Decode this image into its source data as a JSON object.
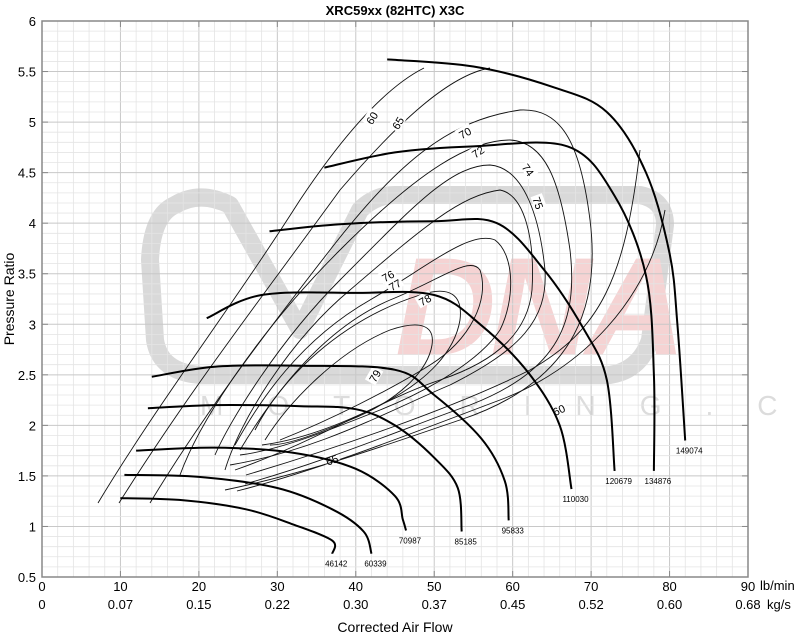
{
  "chart_data": {
    "type": "line",
    "title": "XRC59xx (82HTC) X3C",
    "xlabel": "Corrected Air Flow",
    "ylabel": "Pressure Ratio",
    "x_unit_primary": "lb/min",
    "x_unit_secondary": "kg/s",
    "xlim": [
      0,
      90
    ],
    "ylim": [
      0.5,
      6
    ],
    "x_ticks": [
      0,
      10,
      20,
      30,
      40,
      50,
      60,
      70,
      80,
      90
    ],
    "x_tick_labels": [
      "0",
      "10",
      "20",
      "30",
      "40",
      "50",
      "60",
      "70",
      "80",
      "90"
    ],
    "x_secondary_tick_labels": [
      "0",
      "0.07",
      "0.15",
      "0.22",
      "0.30",
      "0.37",
      "0.45",
      "0.52",
      "0.60",
      "0.68"
    ],
    "y_ticks": [
      0.5,
      1,
      1.5,
      2,
      2.5,
      3,
      3.5,
      4,
      4.5,
      5,
      5.5,
      6
    ],
    "y_tick_labels": [
      "0.5",
      "1",
      "1.5",
      "2",
      "2.5",
      "3",
      "3.5",
      "4",
      "4.5",
      "5",
      "5.5",
      "6"
    ],
    "grid": true,
    "watermark": "DNA Motoring .COM",
    "speed_lines": [
      {
        "rpm": "46142",
        "points": [
          [
            10,
            1.28
          ],
          [
            18,
            1.26
          ],
          [
            26,
            1.17
          ],
          [
            32,
            1.02
          ],
          [
            37,
            0.86
          ],
          [
            37,
            0.73
          ]
        ]
      },
      {
        "rpm": "60339",
        "points": [
          [
            10.5,
            1.51
          ],
          [
            20,
            1.49
          ],
          [
            30,
            1.38
          ],
          [
            37,
            1.17
          ],
          [
            41,
            0.95
          ],
          [
            42,
            0.73
          ]
        ]
      },
      {
        "rpm": "70987",
        "points": [
          [
            12,
            1.75
          ],
          [
            22,
            1.78
          ],
          [
            32,
            1.73
          ],
          [
            40,
            1.57
          ],
          [
            45,
            1.3
          ],
          [
            46,
            1.07
          ],
          [
            46.4,
            0.96
          ]
        ]
      },
      {
        "rpm": "85185",
        "points": [
          [
            13.5,
            2.17
          ],
          [
            22,
            2.2
          ],
          [
            33,
            2.19
          ],
          [
            40,
            2.16
          ],
          [
            45,
            2.0
          ],
          [
            50,
            1.68
          ],
          [
            53,
            1.38
          ],
          [
            53.5,
            0.95
          ]
        ]
      },
      {
        "rpm": "95833",
        "points": [
          [
            14,
            2.48
          ],
          [
            22,
            2.58
          ],
          [
            33,
            2.59
          ],
          [
            45,
            2.55
          ],
          [
            50,
            2.3
          ],
          [
            56,
            1.87
          ],
          [
            59,
            1.45
          ],
          [
            59.5,
            1.06
          ]
        ]
      },
      {
        "rpm": "110030",
        "points": [
          [
            21,
            3.06
          ],
          [
            28,
            3.29
          ],
          [
            40,
            3.31
          ],
          [
            50,
            3.29
          ],
          [
            56,
            2.99
          ],
          [
            62,
            2.52
          ],
          [
            66,
            2.0
          ],
          [
            67.5,
            1.37
          ]
        ]
      },
      {
        "rpm": "120679",
        "points": [
          [
            29,
            3.92
          ],
          [
            38,
            3.99
          ],
          [
            50,
            4.02
          ],
          [
            58,
            4.0
          ],
          [
            64,
            3.54
          ],
          [
            69,
            2.96
          ],
          [
            72,
            2.45
          ],
          [
            73,
            1.55
          ]
        ]
      },
      {
        "rpm": "134876",
        "points": [
          [
            36,
            4.55
          ],
          [
            45,
            4.7
          ],
          [
            55,
            4.76
          ],
          [
            67,
            4.76
          ],
          [
            73,
            4.27
          ],
          [
            77,
            3.48
          ],
          [
            78,
            2.5
          ],
          [
            78,
            1.55
          ]
        ]
      },
      {
        "rpm": "149074",
        "points": [
          [
            44,
            5.62
          ],
          [
            55,
            5.55
          ],
          [
            65,
            5.35
          ],
          [
            72,
            5.1
          ],
          [
            77,
            4.5
          ],
          [
            80,
            3.7
          ],
          [
            81,
            3.0
          ],
          [
            82,
            1.85
          ]
        ]
      }
    ],
    "efficiency_islands": [
      {
        "efficiency": 60,
        "label": "60"
      },
      {
        "efficiency": 65,
        "label": "65"
      },
      {
        "efficiency": 70,
        "label": "70"
      },
      {
        "efficiency": 72,
        "label": "72"
      },
      {
        "efficiency": 74,
        "label": "74"
      },
      {
        "efficiency": 75,
        "label": "75"
      },
      {
        "efficiency": 76,
        "label": "76"
      },
      {
        "efficiency": 77,
        "label": "77"
      },
      {
        "efficiency": 78,
        "label": "78"
      },
      {
        "efficiency": 79,
        "label": "79"
      }
    ]
  },
  "labels": {
    "title": "XRC59xx (82HTC) X3C",
    "xlabel": "Corrected Air Flow",
    "ylabel": "Pressure Ratio",
    "x_unit_primary": "lb/min",
    "x_unit_secondary": "kg/s"
  }
}
